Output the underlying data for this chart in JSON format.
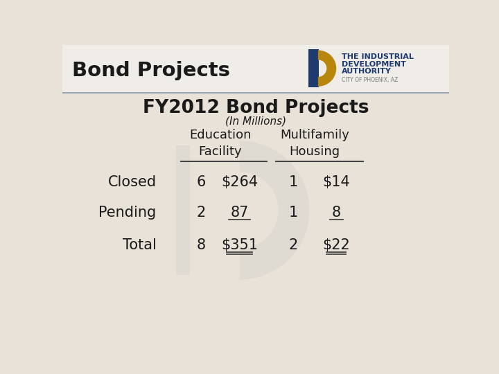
{
  "title": "Bond Projects",
  "subtitle": "FY2012 Bond Projects",
  "subtitle2": "(In Millions)",
  "background_color": "#e8e2d8",
  "header_bg": "#f0ede8",
  "col_headers": [
    "Education\nFacility",
    "Multifamily\nHousing"
  ],
  "row_labels": [
    "Closed",
    "Pending",
    "Total"
  ],
  "ed_counts": [
    "6",
    "2",
    "8"
  ],
  "ed_values": [
    "$264",
    "87",
    "$351"
  ],
  "mf_counts": [
    "1",
    "1",
    "2"
  ],
  "mf_values": [
    "$14",
    "8",
    "$22"
  ],
  "logo_text_line1": "THE INDUSTRIAL",
  "logo_text_line2": "DEVELOPMENT",
  "logo_text_line3": "AUTHORITY",
  "logo_text_line4": "CITY OF PHOENIX, AZ",
  "logo_bar_color": "#1e3a6e",
  "logo_arc_color": "#b8860b",
  "title_color": "#1a1a1a",
  "text_color": "#1a1a1a",
  "separator_color": "#8899aa",
  "line_color": "#444444"
}
